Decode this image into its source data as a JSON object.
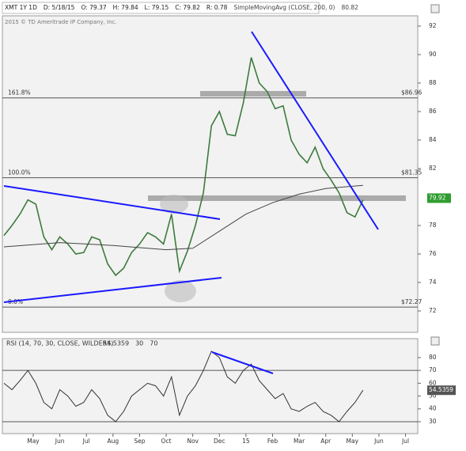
{
  "chart_data": [
    {
      "type": "line",
      "header": [
        "XMT 1Y 1D",
        "D: 5/18/15",
        "O: 79.37",
        "H: 79.84",
        "L: 79.15",
        "C: 79.82",
        "R: 0.78"
      ],
      "header_value": "80.82",
      "copyright": "2015 © TD Ameritrade IP Company, Inc.",
      "xlim": [
        -1.16,
        14.46
      ],
      "xticks": [
        {
          "value": 0,
          "label": "May"
        },
        {
          "value": 1,
          "label": "Jun"
        },
        {
          "value": 2,
          "label": "Jul"
        },
        {
          "value": 3,
          "label": "Aug"
        },
        {
          "value": 4,
          "label": "Sep"
        },
        {
          "value": 5,
          "label": "Oct"
        },
        {
          "value": 6,
          "label": "Nov"
        },
        {
          "value": 7,
          "label": "Dec"
        },
        {
          "value": 8,
          "label": "15"
        },
        {
          "value": 9,
          "label": "Feb"
        },
        {
          "value": 10,
          "label": "Mar"
        },
        {
          "value": 11,
          "label": "Apr"
        },
        {
          "value": 12,
          "label": "May"
        },
        {
          "value": 13,
          "label": "Jun"
        },
        {
          "value": 14,
          "label": "Jul"
        }
      ],
      "ylim": [
        70.5,
        92.72
      ],
      "yticks": [
        72,
        74,
        76,
        78,
        82,
        84,
        86,
        88,
        90,
        92
      ],
      "grid": false,
      "series": [
        {
          "color": "#3d7a3d",
          "x": [
            -1.1,
            -0.8,
            -0.5,
            -0.2,
            0.1,
            0.4,
            0.7,
            1.0,
            1.3,
            1.6,
            1.9,
            2.2,
            2.5,
            2.8,
            3.1,
            3.4,
            3.7,
            4.0,
            4.3,
            4.6,
            4.9,
            5.2,
            5.5,
            5.8,
            6.1,
            6.4,
            6.7,
            7.0,
            7.3,
            7.6,
            7.9,
            8.2,
            8.5,
            8.8,
            9.1,
            9.4,
            9.7,
            10.0,
            10.3,
            10.6,
            10.9,
            11.2,
            11.5,
            11.8,
            12.1,
            12.4
          ],
          "values": [
            77.3,
            78.0,
            78.8,
            79.8,
            79.5,
            77.2,
            76.3,
            77.2,
            76.7,
            76.0,
            76.1,
            77.2,
            77.0,
            75.3,
            74.5,
            75.0,
            76.1,
            76.7,
            77.5,
            77.2,
            76.7,
            78.8,
            74.8,
            76.2,
            78.0,
            80.3,
            85.0,
            86.0,
            84.4,
            84.3,
            86.6,
            89.8,
            88.0,
            87.4,
            86.2,
            86.4,
            84.0,
            83.0,
            82.4,
            83.5,
            82.0,
            81.2,
            80.3,
            78.9,
            78.6,
            79.8
          ]
        },
        {
          "name": "SimpleMovingAvg (CLOSE, 200, 0)",
          "color": "#444444",
          "x": [
            -1.1,
            1,
            3,
            5,
            6,
            7,
            8,
            9,
            10,
            11,
            12.4
          ],
          "values": [
            76.5,
            76.8,
            76.6,
            76.3,
            76.4,
            77.6,
            78.8,
            79.6,
            80.2,
            80.6,
            80.82
          ]
        }
      ],
      "fib_levels": {
        "names": [
          "161.8%",
          "100.0%",
          "0.0%"
        ],
        "values": [
          86.96,
          81.35,
          72.27
        ],
        "value_labels": [
          "$86.96",
          "$81.35",
          "$72.27"
        ]
      },
      "last_price": 79.92,
      "last_price_color": "#2e9c2e"
    },
    {
      "type": "line",
      "title": "RSI (14, 70, 30, CLOSE, WILDERS)",
      "levels": [
        30,
        70
      ],
      "xlim": [
        -1.16,
        14.46
      ],
      "ylim": [
        20.7,
        94.8
      ],
      "yticks": [
        30,
        40,
        50,
        60,
        70,
        80
      ],
      "series": [
        {
          "color": "#333333",
          "x": [
            -1.1,
            -0.8,
            -0.5,
            -0.2,
            0.1,
            0.4,
            0.7,
            1.0,
            1.3,
            1.6,
            1.9,
            2.2,
            2.5,
            2.8,
            3.1,
            3.4,
            3.7,
            4.0,
            4.3,
            4.6,
            4.9,
            5.2,
            5.5,
            5.8,
            6.1,
            6.4,
            6.7,
            7.0,
            7.3,
            7.6,
            7.9,
            8.2,
            8.5,
            8.8,
            9.1,
            9.4,
            9.7,
            10.0,
            10.3,
            10.6,
            10.9,
            11.2,
            11.5,
            11.8,
            12.1,
            12.4
          ],
          "values": [
            60,
            55,
            62,
            70,
            60,
            45,
            40,
            55,
            50,
            42,
            45,
            55,
            48,
            35,
            30,
            38,
            50,
            55,
            60,
            58,
            50,
            65,
            35,
            50,
            58,
            70,
            85,
            80,
            65,
            60,
            70,
            75,
            62,
            55,
            48,
            52,
            40,
            38,
            42,
            45,
            38,
            35,
            30,
            38,
            45,
            54.5359
          ]
        }
      ]
    }
  ]
}
